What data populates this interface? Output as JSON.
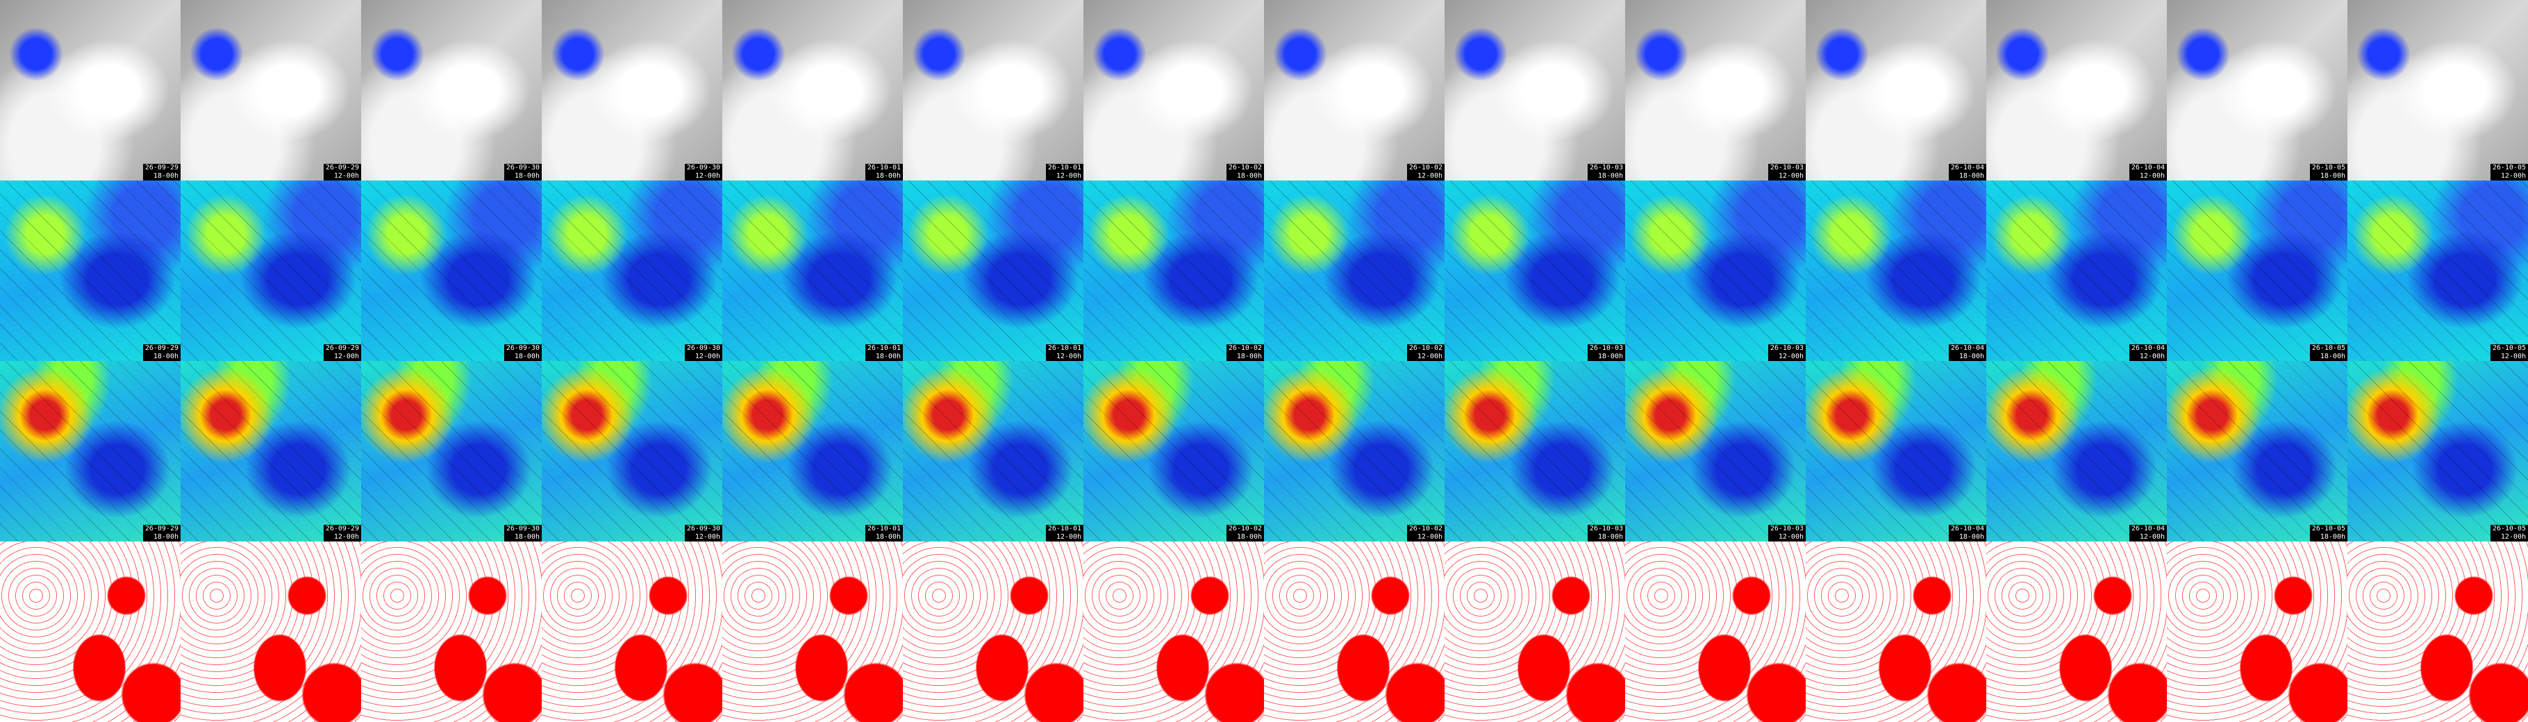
{
  "columns": [
    {
      "date": "26-09-29",
      "time": "18-00h"
    },
    {
      "date": "26-09-29",
      "time": "12-00h"
    },
    {
      "date": "26-09-30",
      "time": "18-00h"
    },
    {
      "date": "26-09-30",
      "time": "12-00h"
    },
    {
      "date": "26-10-01",
      "time": "18-00h"
    },
    {
      "date": "26-10-01",
      "time": "12-00h"
    },
    {
      "date": "26-10-02",
      "time": "18-00h"
    },
    {
      "date": "26-10-02",
      "time": "12-00h"
    },
    {
      "date": "26-10-03",
      "time": "18-00h"
    },
    {
      "date": "26-10-03",
      "time": "12-00h"
    },
    {
      "date": "26-10-04",
      "time": "18-00h"
    },
    {
      "date": "26-10-04",
      "time": "12-00h"
    },
    {
      "date": "26-10-05",
      "time": "18-00h"
    },
    {
      "date": "26-10-05",
      "time": "12-00h"
    }
  ]
}
